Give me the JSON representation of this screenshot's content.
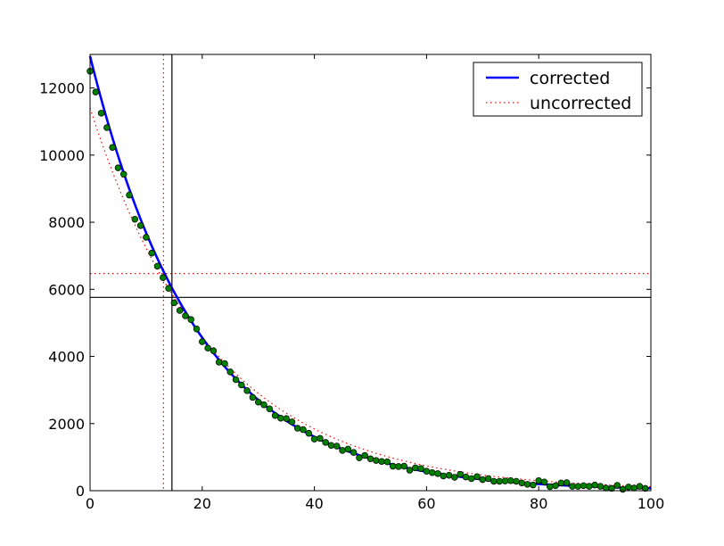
{
  "chart_data": {
    "type": "scatter",
    "title": "",
    "xlabel": "",
    "ylabel": "",
    "xlim": [
      0,
      100
    ],
    "ylim": [
      0,
      13000
    ],
    "xticks": [
      0,
      20,
      40,
      60,
      80,
      100
    ],
    "yticks": [
      0,
      2000,
      4000,
      6000,
      8000,
      10000,
      12000
    ],
    "xtick_labels": [
      "0",
      "20",
      "40",
      "60",
      "80",
      "100"
    ],
    "ytick_labels": [
      "0",
      "2000",
      "4000",
      "6000",
      "8000",
      "10000",
      "12000"
    ],
    "grid": false,
    "legend_position": "top-right",
    "data_points": {
      "marker_color": "#008000",
      "x": [
        0,
        1,
        2,
        3,
        4,
        5,
        6,
        7,
        8,
        9,
        10,
        11,
        12,
        13,
        14,
        15,
        16,
        17,
        18,
        19,
        20,
        21,
        22,
        23,
        24,
        25,
        26,
        27,
        28,
        29,
        30,
        31,
        32,
        33,
        34,
        35,
        36,
        37,
        38,
        39,
        40,
        41,
        42,
        43,
        44,
        45,
        46,
        47,
        48,
        49,
        50,
        51,
        52,
        53,
        54,
        55,
        56,
        57,
        58,
        59,
        60,
        61,
        62,
        63,
        64,
        65,
        66,
        67,
        68,
        69,
        70,
        71,
        72,
        73,
        74,
        75,
        76,
        77,
        78,
        79,
        80,
        81,
        82,
        83,
        84,
        85,
        86,
        87,
        88,
        89,
        90,
        91,
        92,
        93,
        94,
        95,
        96,
        97,
        98,
        99
      ],
      "y": [
        12500,
        11880,
        11250,
        10820,
        10230,
        9620,
        9430,
        8810,
        8090,
        7900,
        7550,
        7080,
        6690,
        6350,
        6030,
        5600,
        5370,
        5210,
        5100,
        4820,
        4440,
        4250,
        4170,
        3830,
        3790,
        3540,
        3310,
        3150,
        2980,
        2780,
        2640,
        2560,
        2440,
        2240,
        2160,
        2150,
        2050,
        1860,
        1820,
        1710,
        1540,
        1560,
        1440,
        1350,
        1330,
        1200,
        1240,
        1140,
        980,
        1050,
        950,
        900,
        870,
        860,
        730,
        720,
        730,
        610,
        680,
        660,
        580,
        540,
        510,
        440,
        460,
        400,
        490,
        410,
        360,
        420,
        330,
        360,
        280,
        280,
        290,
        300,
        280,
        230,
        190,
        170,
        300,
        260,
        120,
        150,
        230,
        240,
        130,
        130,
        150,
        130,
        170,
        130,
        80,
        70,
        160,
        40,
        110,
        80,
        130,
        70
      ]
    },
    "series": [
      {
        "name": "corrected",
        "color": "#0000ff",
        "style": "solid",
        "model": {
          "amplitude": 12950,
          "decay_rate": 0.0522
        }
      },
      {
        "name": "uncorrected",
        "color": "#ff0000",
        "style": "dotted",
        "model": {
          "amplitude": 11400,
          "decay_rate": 0.0456
        }
      }
    ],
    "reference_lines": [
      {
        "orientation": "vertical",
        "value": 14.6,
        "color": "#000000",
        "style": "solid"
      },
      {
        "orientation": "horizontal",
        "value": 5760,
        "color": "#000000",
        "style": "solid"
      },
      {
        "orientation": "vertical",
        "value": 13.1,
        "color": "#ff0000",
        "style": "dotted"
      },
      {
        "orientation": "horizontal",
        "value": 6470,
        "color": "#ff0000",
        "style": "dotted"
      }
    ]
  }
}
